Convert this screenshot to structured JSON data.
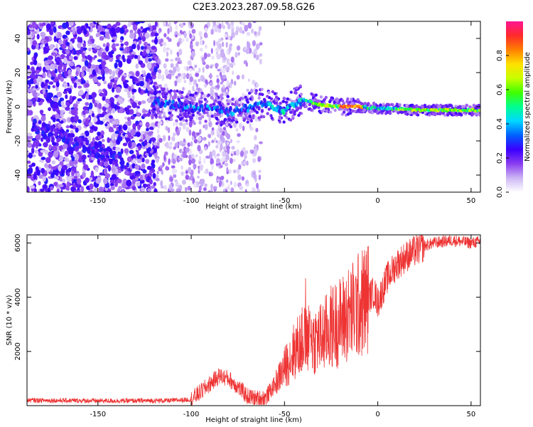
{
  "title": "C2E3.2023.287.09.58.G26",
  "chart_data": [
    {
      "type": "heatmap",
      "xlabel": "Height of straight line (km)",
      "ylabel": "Frequency (Hz)",
      "xlim": [
        -188,
        55
      ],
      "ylim": [
        -50,
        50
      ],
      "x_ticks": [
        -150,
        -100,
        -50,
        0,
        50
      ],
      "y_ticks": [
        -40,
        -20,
        0,
        20,
        40
      ],
      "colorbar": {
        "label": "Normalized spectral amplitude",
        "range": [
          0,
          1
        ],
        "ticks": [
          0.0,
          0.2,
          0.4,
          0.6,
          0.8
        ],
        "colors": [
          "#ffffff",
          "#cdb6f5",
          "#8a3cf0",
          "#3a00ff",
          "#0060ff",
          "#00d8ff",
          "#00ff90",
          "#40ff00",
          "#c8ff00",
          "#ffe000",
          "#ff8000",
          "#ff2a2a",
          "#ff1493"
        ]
      },
      "signal_track": [
        {
          "x": -120,
          "y": 3
        },
        {
          "x": -110,
          "y": 1
        },
        {
          "x": -100,
          "y": -1
        },
        {
          "x": -90,
          "y": 0
        },
        {
          "x": -80,
          "y": -3
        },
        {
          "x": -70,
          "y": -1
        },
        {
          "x": -60,
          "y": 2
        },
        {
          "x": -50,
          "y": -2
        },
        {
          "x": -45,
          "y": 2
        },
        {
          "x": -40,
          "y": 4
        },
        {
          "x": -30,
          "y": 1
        },
        {
          "x": -20,
          "y": 0
        },
        {
          "x": -10,
          "y": 0
        },
        {
          "x": 0,
          "y": -1
        },
        {
          "x": 10,
          "y": -1
        },
        {
          "x": 20,
          "y": -2
        },
        {
          "x": 30,
          "y": -2
        },
        {
          "x": 40,
          "y": -2
        },
        {
          "x": 55,
          "y": -2
        }
      ]
    },
    {
      "type": "line",
      "xlabel": "Height of straight line (km)",
      "ylabel": "SNR (10 * v/v)",
      "xlim": [
        -188,
        55
      ],
      "ylim": [
        0,
        6300
      ],
      "x_ticks": [
        -150,
        -100,
        -50,
        0,
        50
      ],
      "y_ticks": [
        2000,
        4000,
        6000
      ],
      "color": "#ee3333",
      "series": [
        {
          "x": [
            -188,
            -170,
            -150,
            -130,
            -110,
            -100,
            -95,
            -90,
            -85,
            -80,
            -75,
            -70,
            -65,
            -60,
            -55,
            -50,
            -45,
            -40,
            -35,
            -30,
            -25,
            -20,
            -15,
            -10,
            -5,
            -2,
            0,
            5,
            10,
            15,
            20,
            25,
            30,
            35,
            40,
            45,
            50,
            55
          ],
          "y": [
            200,
            190,
            180,
            180,
            190,
            230,
            500,
            800,
            1100,
            1000,
            700,
            350,
            250,
            300,
            800,
            1400,
            2000,
            2400,
            2400,
            2500,
            2900,
            3100,
            3400,
            3700,
            4000,
            4200,
            3800,
            4700,
            5200,
            5500,
            5700,
            5900,
            6000,
            6050,
            6100,
            6050,
            6000,
            6050
          ]
        }
      ]
    }
  ]
}
